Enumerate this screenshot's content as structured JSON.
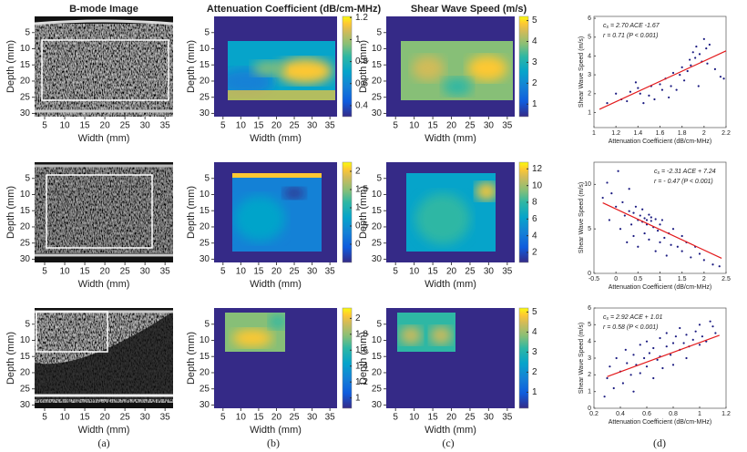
{
  "column_titles": [
    "B-mode Image",
    "Attenuation Coefficient (dB/cm-MHz)",
    "Shear Wave Speed (m/s)"
  ],
  "panel_labels": [
    "(a)",
    "(b)",
    "(c)",
    "(d)"
  ],
  "image_axes": {
    "xlabel": "Width (mm)",
    "ylabel": "Depth (mm)",
    "xlim": [
      2.5,
      37
    ],
    "ylim": [
      0,
      31
    ],
    "xticks": [
      5,
      10,
      15,
      20,
      25,
      30,
      35
    ],
    "yticks": [
      5,
      10,
      15,
      20,
      25,
      30
    ]
  },
  "colorbars": [
    {
      "attenuation": {
        "lim": [
          0.3,
          1.21
        ],
        "ticks": [
          0.4,
          0.6,
          0.8,
          1,
          1.2
        ]
      },
      "shear_wave_speed": {
        "lim": [
          0.4,
          5.2
        ],
        "ticks": [
          1,
          2,
          3,
          4,
          5
        ]
      }
    },
    {
      "attenuation": {
        "lim": [
          -0.5,
          2.25
        ],
        "ticks": [
          0,
          0.5,
          1,
          1.5,
          2
        ]
      },
      "shear_wave_speed": {
        "lim": [
          0.8,
          12.8
        ],
        "ticks": [
          2,
          4,
          6,
          8,
          10,
          12
        ]
      }
    },
    {
      "attenuation": {
        "lim": [
          0.87,
          2.13
        ],
        "ticks": [
          1,
          1.2,
          1.4,
          1.6,
          1.8,
          2
        ]
      },
      "shear_wave_speed": {
        "lim": [
          0.2,
          5.2
        ],
        "ticks": [
          1,
          2,
          3,
          4,
          5
        ]
      }
    }
  ],
  "chart_data": [
    {
      "type": "scatter",
      "xlabel": "Attenuation Coefficient (dB/cm-MHz)",
      "ylabel": "Shear Wave Speed (m/s)",
      "annotations": [
        {
          "symbol": "c",
          "subscript": "s",
          "text": "= 2.70 ACE -1.67"
        },
        {
          "text": "r = 0.71 (P < 0.001)"
        }
      ],
      "xlim": [
        1,
        2.2
      ],
      "ylim": [
        0.2,
        6.1
      ],
      "xticks": [
        1,
        1.2,
        1.4,
        1.6,
        1.8,
        2,
        2.2
      ],
      "yticks": [
        1,
        2,
        3,
        4,
        5,
        6
      ],
      "color": "#1a1a80",
      "x": [
        1.12,
        1.2,
        1.25,
        1.3,
        1.33,
        1.38,
        1.4,
        1.42,
        1.45,
        1.5,
        1.52,
        1.55,
        1.6,
        1.62,
        1.65,
        1.68,
        1.7,
        1.72,
        1.75,
        1.78,
        1.8,
        1.82,
        1.85,
        1.87,
        1.88,
        1.9,
        1.92,
        1.93,
        1.95,
        1.96,
        1.98,
        2.0,
        2.02,
        2.03,
        2.05,
        2.1,
        2.15,
        2.18
      ],
      "y": [
        1.5,
        2.0,
        1.7,
        1.6,
        2.1,
        2.6,
        2.3,
        2.0,
        1.5,
        1.9,
        2.4,
        1.7,
        2.5,
        2.2,
        2.8,
        1.8,
        2.4,
        3.1,
        2.2,
        3.0,
        3.4,
        2.7,
        3.2,
        3.8,
        3.5,
        4.2,
        3.9,
        4.5,
        2.4,
        4.1,
        3.7,
        4.9,
        4.4,
        3.6,
        4.6,
        3.3,
        2.9,
        2.8
      ],
      "fit": {
        "color": "#e31a1c",
        "x": [
          1.05,
          2.2
        ],
        "y": [
          1.17,
          4.27
        ]
      }
    },
    {
      "type": "scatter",
      "xlabel": "Attenuation Coefficient (dB/cm-MHz)",
      "ylabel": "Shear Wave Speed (m/s)",
      "annotations": [
        {
          "symbol": "c",
          "subscript": "s",
          "text": "= -2.31 ACE + 7.24"
        },
        {
          "text": "r = - 0.47 (P < 0.001)"
        }
      ],
      "xlim": [
        -0.5,
        2.5
      ],
      "ylim": [
        0,
        12.5
      ],
      "xticks": [
        -0.5,
        0,
        0.5,
        1,
        1.5,
        2,
        2.5
      ],
      "yticks": [
        0,
        5,
        10
      ],
      "color": "#1a1a80",
      "x": [
        -0.3,
        -0.2,
        -0.15,
        -0.1,
        0,
        0.05,
        0.1,
        0.15,
        0.2,
        0.25,
        0.3,
        0.3,
        0.35,
        0.4,
        0.4,
        0.45,
        0.5,
        0.5,
        0.55,
        0.6,
        0.6,
        0.65,
        0.65,
        0.7,
        0.7,
        0.75,
        0.75,
        0.8,
        0.8,
        0.85,
        0.9,
        0.9,
        0.95,
        1.0,
        1.0,
        1.05,
        1.1,
        1.15,
        1.2,
        1.25,
        1.3,
        1.4,
        1.5,
        1.5,
        1.6,
        1.7,
        1.8,
        1.9,
        2.0,
        2.2,
        2.35
      ],
      "y": [
        8.5,
        10.2,
        6.0,
        9.0,
        7.5,
        11.5,
        5.0,
        8.0,
        6.5,
        3.5,
        9.5,
        7.0,
        5.5,
        6.8,
        4.2,
        7.5,
        6.0,
        3.0,
        6.5,
        5.8,
        7.2,
        6.2,
        4.5,
        6.0,
        5.5,
        6.6,
        3.8,
        5.9,
        6.3,
        5.2,
        6.1,
        2.5,
        4.8,
        5.5,
        3.5,
        6.0,
        4.0,
        2.0,
        4.5,
        3.2,
        5.0,
        3.0,
        2.5,
        4.2,
        3.5,
        1.8,
        3.0,
        2.2,
        1.5,
        1.0,
        0.8
      ],
      "fit": {
        "color": "#e31a1c",
        "x": [
          -0.3,
          2.4
        ],
        "y": [
          7.93,
          1.7
        ]
      }
    },
    {
      "type": "scatter",
      "xlabel": "Attenuation Coefficient (dB/cm-MHz)",
      "ylabel": "Shear Wave Speed (m/s)",
      "annotations": [
        {
          "symbol": "c",
          "subscript": "s",
          "text": "= 2.92 ACE + 1.01"
        },
        {
          "text": "r = 0.58 (P < 0.001)"
        }
      ],
      "xlim": [
        0.2,
        1.2
      ],
      "ylim": [
        0,
        6
      ],
      "xticks": [
        0.2,
        0.4,
        0.6,
        0.8,
        1,
        1.2
      ],
      "yticks": [
        0,
        1,
        2,
        3,
        4,
        5,
        6
      ],
      "color": "#1a1a80",
      "x": [
        0.28,
        0.3,
        0.32,
        0.35,
        0.37,
        0.4,
        0.42,
        0.44,
        0.45,
        0.48,
        0.5,
        0.5,
        0.52,
        0.55,
        0.55,
        0.58,
        0.6,
        0.6,
        0.62,
        0.65,
        0.65,
        0.68,
        0.7,
        0.7,
        0.72,
        0.75,
        0.75,
        0.78,
        0.8,
        0.8,
        0.82,
        0.85,
        0.85,
        0.88,
        0.9,
        0.9,
        0.92,
        0.95,
        0.97,
        1.0,
        1.0,
        1.02,
        1.05,
        1.08,
        1.1,
        1.12
      ],
      "y": [
        0.7,
        1.8,
        2.5,
        1.2,
        3.0,
        2.2,
        1.5,
        3.5,
        2.7,
        2.0,
        3.2,
        1.0,
        2.6,
        3.8,
        2.1,
        3.0,
        2.5,
        4.0,
        3.3,
        1.8,
        3.6,
        2.9,
        4.2,
        3.1,
        2.4,
        3.7,
        4.5,
        3.2,
        3.9,
        2.6,
        4.3,
        3.5,
        4.8,
        3.9,
        4.4,
        3.0,
        3.7,
        4.1,
        4.6,
        3.8,
        5.0,
        4.3,
        4.0,
        5.2,
        4.9,
        4.5
      ],
      "fit": {
        "color": "#e31a1c",
        "x": [
          0.3,
          1.15
        ],
        "y": [
          1.89,
          4.37
        ]
      }
    }
  ]
}
